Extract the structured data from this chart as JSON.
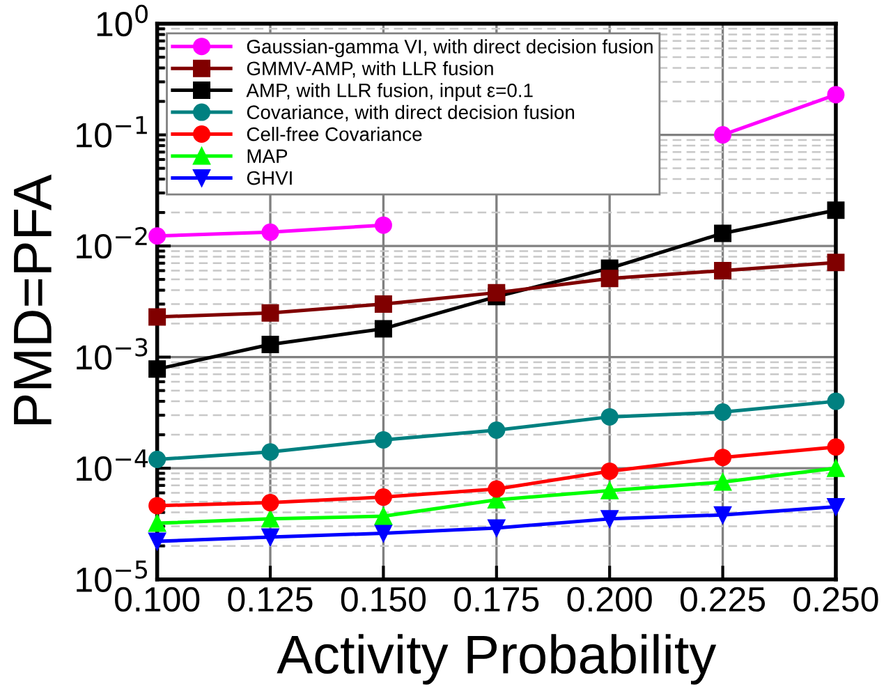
{
  "chart_data": {
    "type": "line",
    "xlabel": "Activity Probability",
    "ylabel": "PMD=PFA",
    "log": "y",
    "x": [
      0.1,
      0.125,
      0.15,
      0.175,
      0.2,
      0.225,
      0.25
    ],
    "xlim": [
      0.1,
      0.25
    ],
    "xticks": [
      {
        "value": 0.1,
        "label": "0.100"
      },
      {
        "value": 0.125,
        "label": "0.125"
      },
      {
        "value": 0.15,
        "label": "0.150"
      },
      {
        "value": 0.175,
        "label": "0.175"
      },
      {
        "value": 0.2,
        "label": "0.200"
      },
      {
        "value": 0.225,
        "label": "0.225"
      },
      {
        "value": 0.25,
        "label": "0.250"
      }
    ],
    "ylim": [
      1e-05,
      1
    ],
    "yticks": [
      {
        "value": 1e-05,
        "label": "10$^{−5}$"
      },
      {
        "value": 0.0001,
        "label": "10$^{−4}$"
      },
      {
        "value": 0.001,
        "label": "10$^{−3}$"
      },
      {
        "value": 0.01,
        "label": "10$^{−2}$"
      },
      {
        "value": 0.1,
        "label": "10$^{−1}$"
      },
      {
        "value": 1,
        "label": "10$^{0}$"
      }
    ],
    "grid": true,
    "legend": "top left",
    "line_style": "solid",
    "series": [
      {
        "name": "Gaussian-gamma VI, with direct decision fusion",
        "color": "#ff00ff",
        "marker": "circle",
        "values": [
          0.0123,
          0.0133,
          0.0154,
          null,
          null,
          0.1,
          0.23
        ]
      },
      {
        "name": "GMMV-AMP, with LLR fusion",
        "color": "#800000",
        "marker": "square",
        "values": [
          0.0023,
          0.0025,
          0.003,
          0.0038,
          0.0051,
          0.006,
          0.0071
        ]
      },
      {
        "name": "AMP, with LLR fusion, input ε=0.1",
        "color": "#000000",
        "marker": "square",
        "values": [
          0.00078,
          0.0013,
          0.0018,
          0.0035,
          0.0063,
          0.013,
          0.021
        ]
      },
      {
        "name": "Covariance, with direct decision fusion",
        "color": "#008080",
        "marker": "circle",
        "values": [
          0.00012,
          0.00014,
          0.00018,
          0.00022,
          0.00029,
          0.00032,
          0.0004
        ]
      },
      {
        "name": "Cell-free Covariance",
        "color": "#ff0000",
        "marker": "circle",
        "values": [
          4.6e-05,
          4.9e-05,
          5.5e-05,
          6.5e-05,
          9.4e-05,
          0.000125,
          0.000155
        ]
      },
      {
        "name": "MAP",
        "color": "#00ff00",
        "marker": "triangle",
        "values": [
          3.2e-05,
          3.5e-05,
          3.7e-05,
          5.2e-05,
          6.3e-05,
          7.5e-05,
          0.0001
        ]
      },
      {
        "name": "GHVI",
        "color": "#0000ff",
        "marker": "triangle_down",
        "values": [
          2.2e-05,
          2.4e-05,
          2.6e-05,
          2.9e-05,
          3.5e-05,
          3.8e-05,
          4.5e-05
        ]
      }
    ]
  }
}
